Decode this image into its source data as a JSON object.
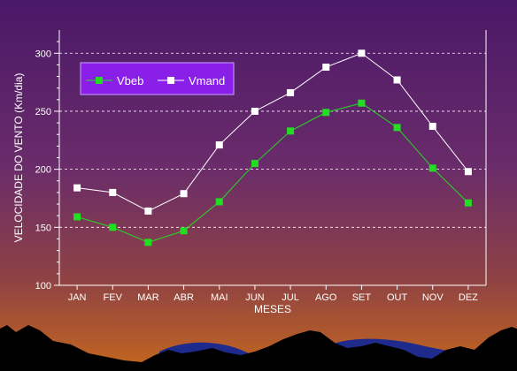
{
  "chart_data": {
    "type": "line",
    "title": "",
    "xlabel": "MESES",
    "ylabel": "VELOCIDADE DO VENTO (Km/dia)",
    "categories": [
      "JAN",
      "FEV",
      "MAR",
      "ABR",
      "MAI",
      "JUN",
      "JUL",
      "AGO",
      "SET",
      "OUT",
      "NOV",
      "DEZ"
    ],
    "ylim": [
      100,
      320
    ],
    "yticks": [
      100,
      150,
      200,
      250,
      300
    ],
    "grid": "horizontal dashed",
    "legend_position": "top-left",
    "series": [
      {
        "name": "Vbeb",
        "color": "#22dd22",
        "marker": "square",
        "values": [
          159,
          150,
          137,
          147,
          172,
          205,
          233,
          249,
          257,
          236,
          201,
          171
        ]
      },
      {
        "name": "Vmand",
        "color": "#ffffff",
        "marker": "square",
        "values": [
          184,
          180,
          164,
          179,
          221,
          250,
          266,
          288,
          300,
          277,
          237,
          198
        ]
      }
    ]
  },
  "colors": {
    "background_top": "#4a1868",
    "background_bottom": "#c4661e",
    "legend_box": "#8a1fe8",
    "water": "#1e2a8c"
  }
}
